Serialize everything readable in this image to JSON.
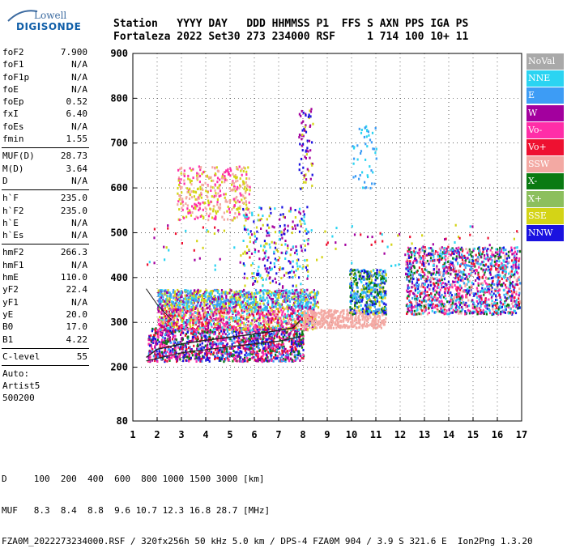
{
  "logo": {
    "line1": "Lowell",
    "line2": "DIGISONDE"
  },
  "header": {
    "line1": "Station   YYYY DAY   DDD HHMMSS P1  FFS S AXN PPS IGA PS",
    "line2": "Fortaleza 2022 Set30 273 234000 RSF     1 714 100 10+ 11"
  },
  "params": [
    {
      "k": "foF2",
      "v": "7.900"
    },
    {
      "k": "foF1",
      "v": "N/A"
    },
    {
      "k": "foF1p",
      "v": "N/A"
    },
    {
      "k": "foE",
      "v": "N/A"
    },
    {
      "k": "foEp",
      "v": "0.52"
    },
    {
      "k": "fxI",
      "v": "6.40"
    },
    {
      "k": "foEs",
      "v": "N/A"
    },
    {
      "k": "fmin",
      "v": "1.55"
    },
    {
      "sep": true
    },
    {
      "k": "MUF(D)",
      "v": "28.73"
    },
    {
      "k": "M(D)",
      "v": "3.64"
    },
    {
      "k": "D",
      "v": "N/A"
    },
    {
      "sep": true
    },
    {
      "k": "h`F",
      "v": "235.0"
    },
    {
      "k": "h`F2",
      "v": "235.0"
    },
    {
      "k": "h`E",
      "v": "N/A"
    },
    {
      "k": "h`Es",
      "v": "N/A"
    },
    {
      "sep": true
    },
    {
      "k": "hmF2",
      "v": "266.3"
    },
    {
      "k": "hmF1",
      "v": "N/A"
    },
    {
      "k": "hmE",
      "v": "110.0"
    },
    {
      "k": "yF2",
      "v": "22.4"
    },
    {
      "k": "yF1",
      "v": "N/A"
    },
    {
      "k": "yE",
      "v": "20.0"
    },
    {
      "k": "B0",
      "v": "17.0"
    },
    {
      "k": "B1",
      "v": "4.22"
    },
    {
      "sep": true
    },
    {
      "k": "C-level",
      "v": "55"
    },
    {
      "sep": true
    },
    {
      "text": "Auto:"
    },
    {
      "text": "Artist5"
    },
    {
      "text": "500200"
    }
  ],
  "legend": [
    {
      "label": "NoVal",
      "color": "#a9a9a9"
    },
    {
      "label": "NNE",
      "color": "#2bd4f2"
    },
    {
      "label": "E",
      "color": "#3d9cf5"
    },
    {
      "label": "W",
      "color": "#a3009e"
    },
    {
      "label": "Vo-",
      "color": "#ff2ea8"
    },
    {
      "label": "Vo+",
      "color": "#ee1131"
    },
    {
      "label": "SSW",
      "color": "#f3a9a3"
    },
    {
      "label": "X-",
      "color": "#0a7a12"
    },
    {
      "label": "X+",
      "color": "#8cbf5d"
    },
    {
      "label": "SSE",
      "color": "#d4d416"
    },
    {
      "label": "NNW",
      "color": "#1a12e0"
    }
  ],
  "chart_data": {
    "type": "scatter",
    "xlim": [
      1,
      17
    ],
    "ylim": [
      80,
      900
    ],
    "x_ticks": [
      "1",
      "2",
      "3",
      "4",
      "5",
      "6",
      "7",
      "8",
      "9",
      "10",
      "11",
      "12",
      "13",
      "14",
      "15",
      "16",
      "17"
    ],
    "y_ticks": [
      "80",
      "200",
      "300",
      "400",
      "500",
      "600",
      "700",
      "800",
      "900"
    ],
    "grid": "dashed",
    "clusters": [
      {
        "x": [
          1.6,
          8.0
        ],
        "y": [
          215,
          290
        ],
        "n": 1400,
        "colors": [
          "#ee1131",
          "#ff2ea8",
          "#a3009e",
          "#3d9cf5",
          "#0a7a12",
          "#1a12e0"
        ]
      },
      {
        "x": [
          2.0,
          8.5
        ],
        "y": [
          285,
          335
        ],
        "n": 1100,
        "colors": [
          "#ee1131",
          "#d4d416",
          "#ff2ea8",
          "#a3009e",
          "#2bd4f2",
          "#f3a9a3"
        ]
      },
      {
        "x": [
          2.0,
          8.6
        ],
        "y": [
          335,
          375
        ],
        "n": 900,
        "colors": [
          "#3d9cf5",
          "#2bd4f2",
          "#a3009e",
          "#d4d416"
        ]
      },
      {
        "x": [
          8.0,
          11.4
        ],
        "y": [
          290,
          330
        ],
        "n": 420,
        "colors": [
          "#f3a9a3"
        ]
      },
      {
        "x": [
          9.9,
          11.4
        ],
        "y": [
          320,
          420
        ],
        "n": 420,
        "colors": [
          "#1a12e0",
          "#3d9cf5",
          "#2bd4f2",
          "#0a7a12",
          "#d4d416"
        ]
      },
      {
        "x": [
          12.2,
          16.9
        ],
        "y": [
          320,
          470
        ],
        "n": 1500,
        "colors": [
          "#a3009e",
          "#ff2ea8",
          "#3d9cf5",
          "#1a12e0",
          "#ee1131",
          "#f3a9a3",
          "#0a7a12",
          "#2bd4f2"
        ]
      },
      {
        "x": [
          2.8,
          5.8
        ],
        "y": [
          530,
          650
        ],
        "n": 380,
        "colors": [
          "#d4d416",
          "#f3a9a3",
          "#ff2ea8"
        ]
      },
      {
        "x": [
          5.5,
          8.2
        ],
        "y": [
          380,
          560
        ],
        "n": 260,
        "colors": [
          "#a3009e",
          "#1a12e0",
          "#d4d416",
          "#2bd4f2"
        ]
      },
      {
        "x": [
          7.8,
          8.4
        ],
        "y": [
          600,
          780
        ],
        "n": 70,
        "colors": [
          "#a3009e",
          "#d4d416",
          "#1a12e0"
        ]
      },
      {
        "x": [
          10.0,
          11.0
        ],
        "y": [
          600,
          740
        ],
        "n": 50,
        "colors": [
          "#2bd4f2",
          "#3d9cf5"
        ]
      },
      {
        "x": [
          1.5,
          17.0
        ],
        "y": [
          420,
          520
        ],
        "n": 120,
        "colors": [
          "#2bd4f2",
          "#a3009e",
          "#ee1131",
          "#d4d416"
        ]
      }
    ],
    "trace_curve": {
      "x": [
        1.55,
        2.0,
        3.0,
        4.0,
        5.0,
        6.0,
        7.0,
        7.6,
        7.9
      ],
      "y": [
        222,
        240,
        252,
        260,
        267,
        274,
        282,
        288,
        305
      ]
    },
    "lower_curve": {
      "x": [
        1.55,
        3.0,
        5.0,
        7.0,
        7.9
      ],
      "y": [
        214,
        232,
        246,
        258,
        268
      ]
    },
    "upper_curve": {
      "x": [
        1.55,
        2.0,
        2.6
      ],
      "y": [
        375,
        340,
        305
      ]
    }
  },
  "footer": {
    "line1": "D     100  200  400  600  800 1000 1500 3000 [km]",
    "line2": "MUF   8.3  8.4  8.8  9.6 10.7 12.3 16.8 28.7 [MHz]",
    "line3": "FZA0M_2022273234000.RSF / 320fx256h 50 kHz 5.0 km / DPS-4 FZA0M 904 / 3.9 S 321.6 E  Ion2Png 1.3.20"
  }
}
